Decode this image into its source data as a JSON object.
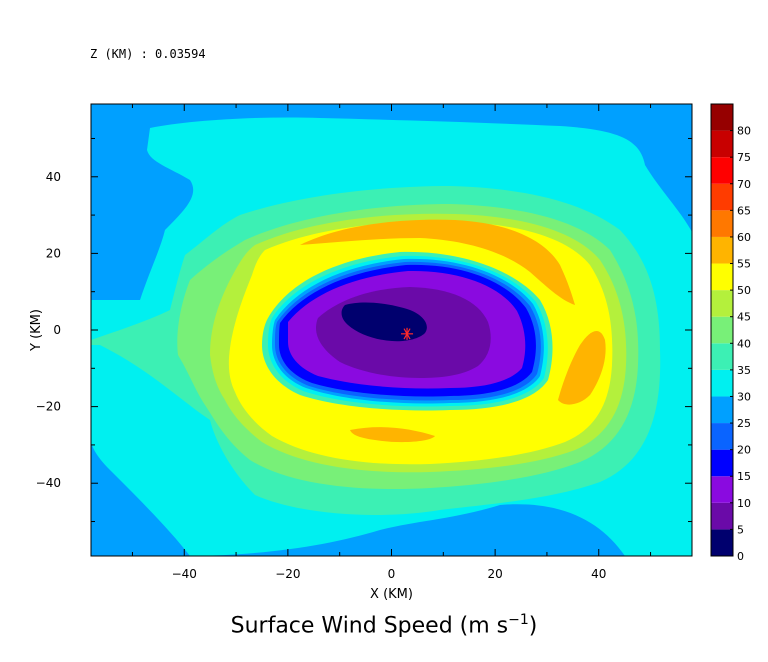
{
  "header": {
    "level_label": "Z (KM) : 0.03594"
  },
  "chart_data": {
    "type": "heatmap",
    "title": "Surface Wind Speed (m s",
    "title_unit_exp": "−1",
    "title_close": ")",
    "xlabel": "X (KM)",
    "ylabel": "Y (KM)",
    "xlim": [
      -58,
      58
    ],
    "ylim": [
      -59,
      59
    ],
    "x_ticks": [
      -40,
      -20,
      0,
      20,
      40
    ],
    "y_ticks": [
      -40,
      -20,
      0,
      20,
      40
    ],
    "x_tick_labels": [
      "−40",
      "−20",
      "0",
      "20",
      "40"
    ],
    "y_tick_labels": [
      "−40",
      "−20",
      "0",
      "20",
      "40"
    ],
    "storm_center": {
      "x": 3,
      "y": -1,
      "marker": "asterisk",
      "color": "#ff2a2a"
    },
    "colorbar": {
      "levels": [
        0,
        5,
        10,
        15,
        20,
        25,
        30,
        35,
        40,
        45,
        50,
        55,
        60,
        65,
        70,
        75,
        80
      ],
      "level_labels": [
        "0",
        "5",
        "10",
        "15",
        "20",
        "25",
        "30",
        "35",
        "40",
        "45",
        "50",
        "55",
        "60",
        "65",
        "70",
        "75",
        "80"
      ],
      "colors": [
        "#00006e",
        "#6a0aa8",
        "#8a0ae0",
        "#0000ff",
        "#0a64ff",
        "#00a0ff",
        "#00f0f0",
        "#3cf0b4",
        "#78f078",
        "#b4f03c",
        "#ffff00",
        "#ffb400",
        "#ff7800",
        "#ff3c00",
        "#ff0000",
        "#c80000",
        "#960000"
      ]
    },
    "wind_field": {
      "description_levels_ms": [
        25,
        30,
        35,
        40,
        45,
        50,
        55,
        10,
        5
      ],
      "eye_max_wind_ms": 5,
      "eyewall_inner_ms": 15,
      "peak_band_ms": 55
    }
  }
}
